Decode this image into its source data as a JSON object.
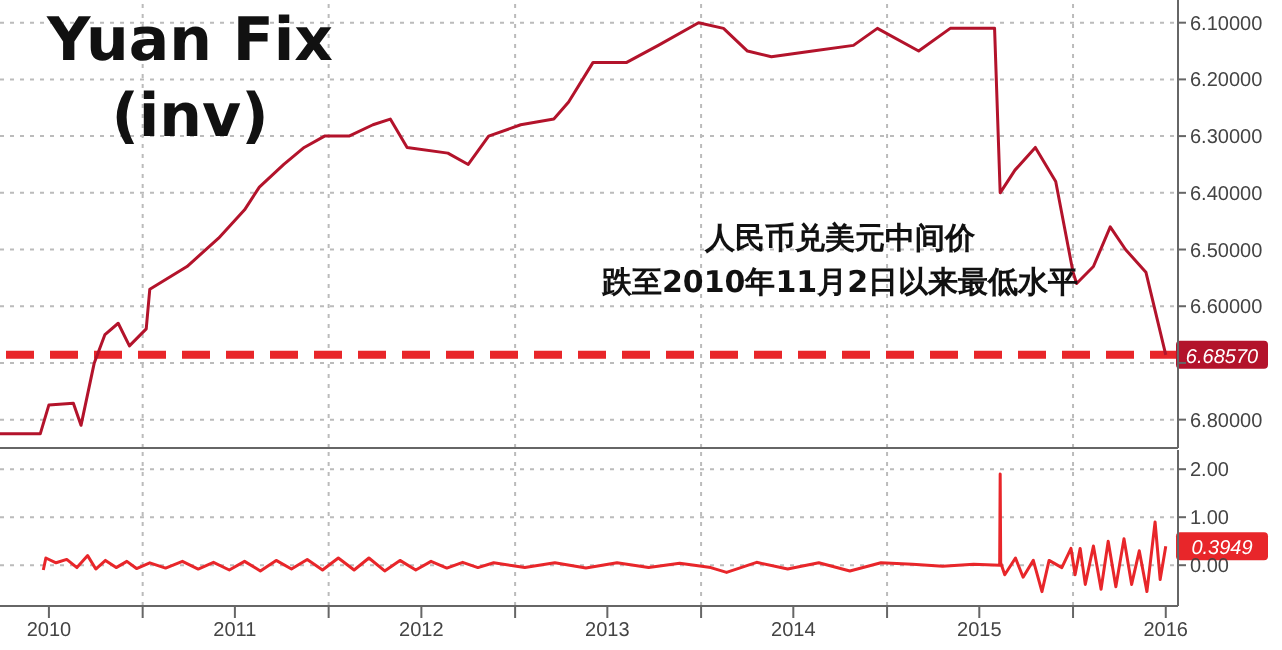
{
  "chart_data": [
    {
      "type": "line",
      "title": "Yuan Fix (inv)",
      "annotations": [
        "人民币兑美元中间价",
        "跌至2010年11月2日以来最低水平"
      ],
      "series": [
        {
          "color": "#b3132b",
          "value_labels": [
            null,
            null,
            null,
            null,
            null,
            null,
            null,
            null,
            null,
            null,
            null,
            null,
            null,
            null,
            null,
            null,
            null,
            null,
            null,
            null,
            null,
            null,
            null,
            null,
            null,
            null,
            null,
            null,
            null,
            null,
            null,
            null,
            null,
            null,
            null,
            null,
            null,
            null,
            null,
            null,
            null,
            null,
            null,
            null,
            null,
            null,
            null,
            null,
            null,
            null,
            null,
            "6.68570"
          ],
          "x": [
            "2010-03-27",
            "2010-06-14",
            "2010-07-01",
            "2010-08-18",
            "2010-09-02",
            "2010-09-28",
            "2010-10-19",
            "2010-11-14",
            "2010-12-06",
            "2011-01-08",
            "2011-01-15",
            "2011-03-29",
            "2011-05-30",
            "2011-07-20",
            "2011-08-18",
            "2011-10-05",
            "2011-11-14",
            "2011-12-24",
            "2012-02-10",
            "2012-03-28",
            "2012-05-01",
            "2012-06-03",
            "2012-08-22",
            "2012-10-01",
            "2012-11-10",
            "2013-01-12",
            "2013-03-18",
            "2013-04-16",
            "2013-06-03",
            "2013-08-08",
            "2013-10-09",
            "2013-12-27",
            "2014-02-14",
            "2014-04-02",
            "2014-05-19",
            "2014-08-08",
            "2014-10-27",
            "2014-12-13",
            "2015-03-04",
            "2015-05-05",
            "2015-07-31",
            "2015-08-11",
            "2015-09-09",
            "2015-10-19",
            "2015-11-28",
            "2016-01-01",
            "2016-01-08",
            "2016-02-10",
            "2016-03-14",
            "2016-04-13",
            "2016-05-23",
            "2016-07-01"
          ],
          "values": [
            6.825,
            6.825,
            6.774,
            6.771,
            6.81,
            6.7,
            6.65,
            6.63,
            6.67,
            6.64,
            6.57,
            6.53,
            6.48,
            6.43,
            6.39,
            6.35,
            6.32,
            6.3,
            6.3,
            6.28,
            6.27,
            6.32,
            6.33,
            6.35,
            6.3,
            6.28,
            6.27,
            6.24,
            6.17,
            6.17,
            6.14,
            6.1,
            6.11,
            6.15,
            6.16,
            6.15,
            6.14,
            6.11,
            6.15,
            6.11,
            6.11,
            6.4,
            6.36,
            6.32,
            6.38,
            6.54,
            6.56,
            6.53,
            6.46,
            6.5,
            6.54,
            6.6857
          ]
        }
      ],
      "xlim": [
        "2010-03-27",
        "2016-07-25"
      ],
      "xticks": [
        {
          "value": "2011-01-01",
          "label": null
        },
        {
          "value": "2012-01-01",
          "label": null
        },
        {
          "value": "2013-01-01",
          "label": null
        },
        {
          "value": "2014-01-01",
          "label": null
        },
        {
          "value": "2015-01-01",
          "label": null
        },
        {
          "value": "2016-01-01",
          "label": null
        }
      ],
      "ylim": [
        6.85,
        6.06
      ],
      "yticks": [
        {
          "value": 6.1,
          "label": "6.10000"
        },
        {
          "value": 6.2,
          "label": "6.20000"
        },
        {
          "value": 6.3,
          "label": "6.30000"
        },
        {
          "value": 6.4,
          "label": "6.40000"
        },
        {
          "value": 6.5,
          "label": "6.50000"
        },
        {
          "value": 6.6,
          "label": "6.60000"
        },
        {
          "value": 6.7,
          "label": null
        },
        {
          "value": 6.8,
          "label": "6.80000"
        }
      ],
      "ref_lines": [
        {
          "axis": "y",
          "value": 6.6857,
          "label": null,
          "color": "#e8262a",
          "line_style": "dashed"
        }
      ],
      "grid": true,
      "tick_labels": "y"
    },
    {
      "type": "line",
      "series": [
        {
          "color": "#e8262a",
          "value_labels": [
            null,
            null,
            null,
            null,
            null,
            null,
            null,
            null,
            null,
            null,
            null,
            null,
            null,
            null,
            null,
            null,
            null,
            null,
            null,
            null,
            null,
            null,
            null,
            null,
            null,
            null,
            null,
            null,
            null,
            null,
            null,
            null,
            null,
            null,
            null,
            null,
            null,
            null,
            null,
            null,
            null,
            null,
            null,
            null,
            null,
            null,
            null,
            null,
            null,
            null,
            null,
            null,
            null,
            null,
            null,
            null,
            null,
            null,
            null,
            null,
            null,
            null,
            null,
            null,
            null,
            null,
            null,
            null,
            null,
            null,
            null,
            null,
            null,
            null,
            "0.3949"
          ],
          "x": [
            "2010-06-20",
            "2010-06-25",
            "2010-07-15",
            "2010-08-05",
            "2010-08-25",
            "2010-09-15",
            "2010-10-01",
            "2010-10-20",
            "2010-11-10",
            "2010-12-01",
            "2010-12-20",
            "2011-01-15",
            "2011-02-15",
            "2011-03-20",
            "2011-04-20",
            "2011-05-20",
            "2011-06-20",
            "2011-07-20",
            "2011-08-20",
            "2011-09-20",
            "2011-10-20",
            "2011-11-20",
            "2011-12-20",
            "2012-01-20",
            "2012-02-20",
            "2012-03-20",
            "2012-04-20",
            "2012-05-20",
            "2012-06-20",
            "2012-07-20",
            "2012-08-20",
            "2012-09-20",
            "2012-10-20",
            "2012-11-20",
            "2013-01-20",
            "2013-03-20",
            "2013-05-20",
            "2013-07-20",
            "2013-09-20",
            "2013-11-20",
            "2014-01-20",
            "2014-02-20",
            "2014-04-20",
            "2014-06-20",
            "2014-08-20",
            "2014-10-20",
            "2014-12-20",
            "2015-02-20",
            "2015-04-20",
            "2015-06-20",
            "2015-08-10",
            "2015-08-11",
            "2015-08-12",
            "2015-08-20",
            "2015-09-10",
            "2015-09-25",
            "2015-10-15",
            "2015-11-01",
            "2015-11-15",
            "2015-12-10",
            "2015-12-28",
            "2016-01-05",
            "2016-01-15",
            "2016-01-25",
            "2016-02-10",
            "2016-02-25",
            "2016-03-10",
            "2016-03-25",
            "2016-04-10",
            "2016-04-25",
            "2016-05-10",
            "2016-05-25",
            "2016-06-10",
            "2016-06-20",
            "2016-07-01"
          ],
          "values": [
            -0.1,
            0.15,
            0.05,
            0.12,
            -0.05,
            0.2,
            -0.08,
            0.1,
            -0.05,
            0.08,
            -0.07,
            0.05,
            -0.06,
            0.08,
            -0.08,
            0.06,
            -0.1,
            0.08,
            -0.12,
            0.1,
            -0.08,
            0.12,
            -0.1,
            0.15,
            -0.1,
            0.15,
            -0.12,
            0.1,
            -0.1,
            0.08,
            -0.06,
            0.06,
            -0.05,
            0.05,
            -0.05,
            0.05,
            -0.06,
            0.05,
            -0.05,
            0.04,
            -0.05,
            -0.15,
            0.06,
            -0.08,
            0.05,
            -0.12,
            0.05,
            0.02,
            -0.02,
            0.02,
            0.0,
            1.9,
            0.05,
            -0.2,
            0.15,
            -0.25,
            0.1,
            -0.55,
            0.1,
            -0.05,
            0.35,
            -0.2,
            0.35,
            -0.4,
            0.4,
            -0.5,
            0.5,
            -0.45,
            0.55,
            -0.4,
            0.3,
            -0.55,
            0.9,
            -0.3,
            0.3949
          ]
        }
      ],
      "xlim": [
        "2010-03-27",
        "2016-07-25"
      ],
      "xticks": [
        {
          "value": "2010-07-01",
          "label": "2010"
        },
        {
          "value": "2011-01-01",
          "label": null
        },
        {
          "value": "2011-07-01",
          "label": "2011"
        },
        {
          "value": "2012-01-01",
          "label": null
        },
        {
          "value": "2012-07-01",
          "label": "2012"
        },
        {
          "value": "2013-01-01",
          "label": null
        },
        {
          "value": "2013-07-01",
          "label": "2013"
        },
        {
          "value": "2014-01-01",
          "label": null
        },
        {
          "value": "2014-07-01",
          "label": "2014"
        },
        {
          "value": "2015-01-01",
          "label": null
        },
        {
          "value": "2015-07-01",
          "label": "2015"
        },
        {
          "value": "2016-01-01",
          "label": null
        },
        {
          "value": "2016-07-01",
          "label": "2016"
        }
      ],
      "ylim": [
        -0.85,
        2.4
      ],
      "yticks": [
        {
          "value": 0,
          "label": "0.00"
        },
        {
          "value": 1,
          "label": "1.00"
        },
        {
          "value": 2,
          "label": "2.00"
        }
      ],
      "grid": true
    }
  ]
}
